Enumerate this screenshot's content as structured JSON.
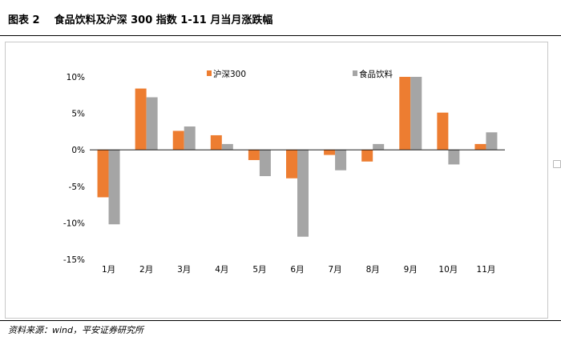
{
  "header": {
    "figure_no": "图表 2",
    "title": "食品饮料及沪深 300 指数 1-11 月当月涨跌幅"
  },
  "source_note": "资料来源：wind，平安证券研究所",
  "chart_data": {
    "type": "bar",
    "categories": [
      "1月",
      "2月",
      "3月",
      "4月",
      "5月",
      "6月",
      "7月",
      "8月",
      "9月",
      "10月",
      "11月"
    ],
    "series": [
      {
        "name": "沪深300",
        "color": "#ED7D31",
        "values": [
          -6.5,
          8.4,
          2.6,
          2.0,
          -1.4,
          -3.9,
          -0.7,
          -1.6,
          10.0,
          5.1,
          0.8
        ]
      },
      {
        "name": "食品饮料",
        "color": "#A5A5A5",
        "values": [
          -10.2,
          7.2,
          3.2,
          0.8,
          -3.6,
          -11.9,
          -2.8,
          0.8,
          10.0,
          -2.0,
          2.4
        ]
      }
    ],
    "ylim": [
      -15,
      10
    ],
    "yticks": [
      10,
      5,
      0,
      -5,
      -10,
      -15
    ],
    "ytick_labels": [
      "10%",
      "5%",
      "0%",
      "-5%",
      "-10%",
      "-15%"
    ],
    "legend_position": "top",
    "grid": false
  }
}
